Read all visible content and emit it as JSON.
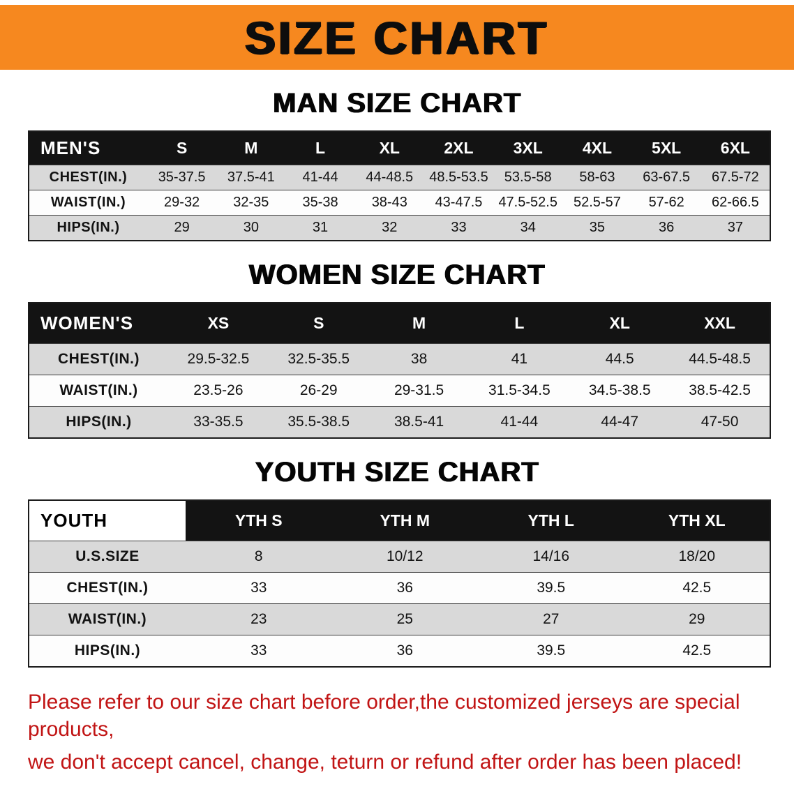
{
  "banner": {
    "title": "SIZE CHART",
    "bg_color": "#f6881f",
    "text_color": "#0d0d0d"
  },
  "sections": [
    {
      "heading": "MAN SIZE CHART",
      "table": {
        "header": [
          "MEN'S",
          "S",
          "M",
          "L",
          "XL",
          "2XL",
          "3XL",
          "4XL",
          "5XL",
          "6XL"
        ],
        "rows": [
          [
            "CHEST(IN.)",
            "35-37.5",
            "37.5-41",
            "41-44",
            "44-48.5",
            "48.5-53.5",
            "53.5-58",
            "58-63",
            "63-67.5",
            "67.5-72"
          ],
          [
            "WAIST(IN.)",
            "29-32",
            "32-35",
            "35-38",
            "38-43",
            "43-47.5",
            "47.5-52.5",
            "52.5-57",
            "57-62",
            "62-66.5"
          ],
          [
            "HIPS(IN.)",
            "29",
            "30",
            "31",
            "32",
            "33",
            "34",
            "35",
            "36",
            "37"
          ]
        ]
      }
    },
    {
      "heading": "WOMEN SIZE CHART",
      "table": {
        "header": [
          "WOMEN'S",
          "XS",
          "S",
          "M",
          "L",
          "XL",
          "XXL"
        ],
        "rows": [
          [
            "CHEST(IN.)",
            "29.5-32.5",
            "32.5-35.5",
            "38",
            "41",
            "44.5",
            "44.5-48.5"
          ],
          [
            "WAIST(IN.)",
            "23.5-26",
            "26-29",
            "29-31.5",
            "31.5-34.5",
            "34.5-38.5",
            "38.5-42.5"
          ],
          [
            "HIPS(IN.)",
            "33-35.5",
            "35.5-38.5",
            "38.5-41",
            "41-44",
            "44-47",
            "47-50"
          ]
        ]
      }
    },
    {
      "heading": "YOUTH SIZE CHART",
      "table": {
        "header": [
          "YOUTH",
          "YTH S",
          "YTH M",
          "YTH L",
          "YTH XL"
        ],
        "rows": [
          [
            "U.S.SIZE",
            "8",
            "10/12",
            "14/16",
            "18/20"
          ],
          [
            "CHEST(IN.)",
            "33",
            "36",
            "39.5",
            "42.5"
          ],
          [
            "WAIST(IN.)",
            "23",
            "25",
            "27",
            "29"
          ],
          [
            "HIPS(IN.)",
            "33",
            "36",
            "39.5",
            "42.5"
          ]
        ]
      }
    }
  ],
  "footer": {
    "line1": "Please refer to our size chart before order,the customized jerseys are special products,",
    "line2": "we don't accept cancel, change, teturn or refund after order has been placed!",
    "text_color": "#c11414"
  },
  "colors": {
    "header_row_bg": "#131313",
    "header_row_text": "#ffffff",
    "stripe_gray": "#d9d9d9",
    "stripe_white": "#fdfdfd"
  }
}
